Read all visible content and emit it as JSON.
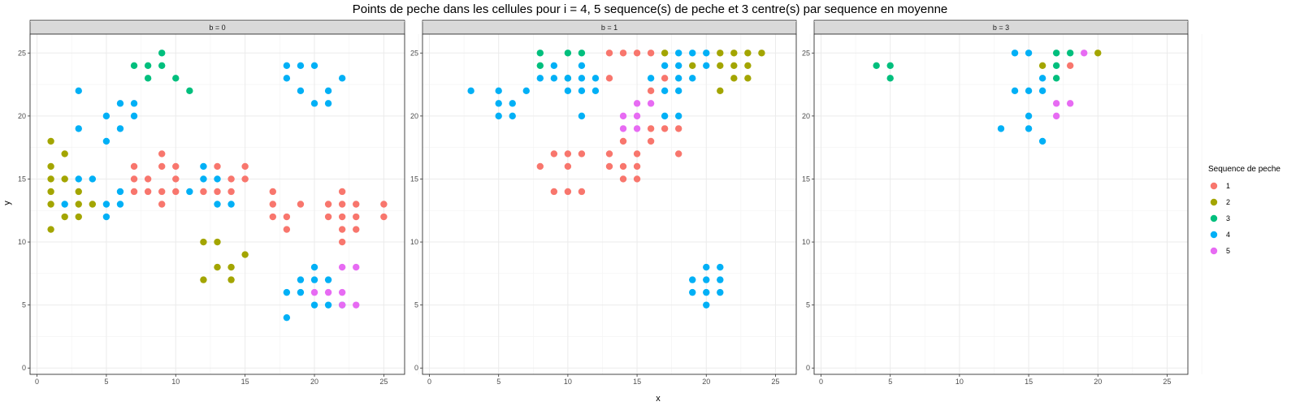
{
  "chart_data": {
    "type": "scatter",
    "title": "Points de peche dans les cellules pour i = 4, 5 sequence(s) de peche et 3 centre(s) par sequence en moyenne",
    "xlabel": "x",
    "ylabel": "y",
    "xlim": [
      -0.5,
      26.5
    ],
    "ylim": [
      -0.5,
      26.5
    ],
    "x_ticks": [
      0,
      5,
      10,
      15,
      20,
      25
    ],
    "y_ticks": [
      0,
      5,
      10,
      15,
      20,
      25
    ],
    "grid": true,
    "legend": {
      "title": "Sequence de peche",
      "placement": "right",
      "entries": [
        {
          "label": "1",
          "color": "#F8766D"
        },
        {
          "label": "2",
          "color": "#A3A500"
        },
        {
          "label": "3",
          "color": "#00BF7D"
        },
        {
          "label": "4",
          "color": "#00B0F6"
        },
        {
          "label": "5",
          "color": "#E76BF3"
        }
      ]
    },
    "facets": [
      {
        "label": "b = 0",
        "series": [
          {
            "name": "1",
            "points": [
              [
                7,
                16
              ],
              [
                7,
                15
              ],
              [
                7,
                14
              ],
              [
                8,
                15
              ],
              [
                8,
                14
              ],
              [
                9,
                17
              ],
              [
                9,
                16
              ],
              [
                9,
                14
              ],
              [
                9,
                13
              ],
              [
                10,
                16
              ],
              [
                10,
                15
              ],
              [
                10,
                14
              ],
              [
                12,
                14
              ],
              [
                13,
                16
              ],
              [
                13,
                14
              ],
              [
                14,
                15
              ],
              [
                14,
                14
              ],
              [
                15,
                16
              ],
              [
                15,
                15
              ],
              [
                17,
                14
              ],
              [
                17,
                13
              ],
              [
                17,
                12
              ],
              [
                18,
                12
              ],
              [
                18,
                11
              ],
              [
                19,
                13
              ],
              [
                21,
                13
              ],
              [
                21,
                12
              ],
              [
                22,
                14
              ],
              [
                22,
                13
              ],
              [
                22,
                12
              ],
              [
                22,
                11
              ],
              [
                22,
                10
              ],
              [
                23,
                13
              ],
              [
                23,
                12
              ],
              [
                23,
                11
              ],
              [
                25,
                13
              ],
              [
                25,
                12
              ]
            ]
          },
          {
            "name": "2",
            "points": [
              [
                1,
                18
              ],
              [
                1,
                16
              ],
              [
                1,
                15
              ],
              [
                1,
                14
              ],
              [
                1,
                13
              ],
              [
                1,
                11
              ],
              [
                2,
                17
              ],
              [
                2,
                15
              ],
              [
                2,
                12
              ],
              [
                3,
                14
              ],
              [
                3,
                13
              ],
              [
                3,
                12
              ],
              [
                4,
                13
              ],
              [
                12,
                10
              ],
              [
                12,
                7
              ],
              [
                13,
                10
              ],
              [
                13,
                8
              ],
              [
                14,
                8
              ],
              [
                14,
                7
              ],
              [
                15,
                9
              ]
            ]
          },
          {
            "name": "3",
            "points": [
              [
                7,
                24
              ],
              [
                8,
                24
              ],
              [
                8,
                23
              ],
              [
                9,
                25
              ],
              [
                9,
                24
              ],
              [
                10,
                23
              ],
              [
                11,
                22
              ]
            ]
          },
          {
            "name": "4",
            "points": [
              [
                2,
                13
              ],
              [
                3,
                22
              ],
              [
                3,
                19
              ],
              [
                3,
                15
              ],
              [
                4,
                15
              ],
              [
                5,
                20
              ],
              [
                5,
                18
              ],
              [
                5,
                13
              ],
              [
                5,
                12
              ],
              [
                6,
                21
              ],
              [
                6,
                19
              ],
              [
                6,
                14
              ],
              [
                6,
                13
              ],
              [
                7,
                21
              ],
              [
                7,
                20
              ],
              [
                11,
                14
              ],
              [
                12,
                16
              ],
              [
                12,
                15
              ],
              [
                13,
                15
              ],
              [
                13,
                13
              ],
              [
                14,
                13
              ],
              [
                18,
                24
              ],
              [
                18,
                23
              ],
              [
                18,
                6
              ],
              [
                18,
                4
              ],
              [
                19,
                24
              ],
              [
                19,
                22
              ],
              [
                19,
                7
              ],
              [
                19,
                6
              ],
              [
                20,
                24
              ],
              [
                20,
                21
              ],
              [
                20,
                8
              ],
              [
                20,
                7
              ],
              [
                20,
                5
              ],
              [
                21,
                22
              ],
              [
                21,
                21
              ],
              [
                21,
                7
              ],
              [
                21,
                5
              ],
              [
                22,
                23
              ],
              [
                22,
                5
              ]
            ]
          },
          {
            "name": "5",
            "points": [
              [
                20,
                6
              ],
              [
                21,
                6
              ],
              [
                22,
                8
              ],
              [
                22,
                6
              ],
              [
                22,
                5
              ],
              [
                23,
                8
              ],
              [
                23,
                5
              ]
            ]
          }
        ]
      },
      {
        "label": "b = 1",
        "series": [
          {
            "name": "1",
            "points": [
              [
                8,
                16
              ],
              [
                9,
                17
              ],
              [
                9,
                14
              ],
              [
                10,
                17
              ],
              [
                10,
                16
              ],
              [
                10,
                14
              ],
              [
                11,
                17
              ],
              [
                11,
                14
              ],
              [
                13,
                25
              ],
              [
                13,
                23
              ],
              [
                13,
                17
              ],
              [
                13,
                16
              ],
              [
                14,
                25
              ],
              [
                14,
                18
              ],
              [
                14,
                16
              ],
              [
                14,
                15
              ],
              [
                15,
                25
              ],
              [
                15,
                17
              ],
              [
                15,
                16
              ],
              [
                15,
                15
              ],
              [
                16,
                25
              ],
              [
                16,
                22
              ],
              [
                16,
                19
              ],
              [
                16,
                18
              ],
              [
                17,
                23
              ],
              [
                17,
                19
              ],
              [
                18,
                19
              ],
              [
                18,
                17
              ]
            ]
          },
          {
            "name": "2",
            "points": [
              [
                17,
                25
              ],
              [
                19,
                24
              ],
              [
                21,
                25
              ],
              [
                21,
                24
              ],
              [
                21,
                22
              ],
              [
                22,
                25
              ],
              [
                22,
                24
              ],
              [
                22,
                23
              ],
              [
                23,
                25
              ],
              [
                23,
                24
              ],
              [
                23,
                23
              ],
              [
                24,
                25
              ]
            ]
          },
          {
            "name": "3",
            "points": [
              [
                8,
                25
              ],
              [
                8,
                24
              ],
              [
                10,
                25
              ],
              [
                10,
                23
              ],
              [
                11,
                25
              ]
            ]
          },
          {
            "name": "4",
            "points": [
              [
                3,
                22
              ],
              [
                5,
                22
              ],
              [
                5,
                21
              ],
              [
                5,
                20
              ],
              [
                6,
                21
              ],
              [
                6,
                20
              ],
              [
                7,
                22
              ],
              [
                8,
                23
              ],
              [
                9,
                24
              ],
              [
                9,
                23
              ],
              [
                10,
                23
              ],
              [
                10,
                22
              ],
              [
                11,
                24
              ],
              [
                11,
                23
              ],
              [
                11,
                22
              ],
              [
                11,
                20
              ],
              [
                12,
                23
              ],
              [
                12,
                22
              ],
              [
                16,
                23
              ],
              [
                17,
                24
              ],
              [
                17,
                22
              ],
              [
                18,
                25
              ],
              [
                18,
                24
              ],
              [
                18,
                23
              ],
              [
                18,
                22
              ],
              [
                18,
                20
              ],
              [
                19,
                25
              ],
              [
                19,
                23
              ],
              [
                19,
                7
              ],
              [
                19,
                6
              ],
              [
                20,
                25
              ],
              [
                20,
                24
              ],
              [
                20,
                8
              ],
              [
                20,
                7
              ],
              [
                20,
                6
              ],
              [
                20,
                5
              ],
              [
                21,
                8
              ],
              [
                21,
                7
              ],
              [
                21,
                6
              ],
              [
                17,
                20
              ]
            ]
          },
          {
            "name": "5",
            "points": [
              [
                14,
                20
              ],
              [
                14,
                19
              ],
              [
                15,
                21
              ],
              [
                15,
                20
              ],
              [
                15,
                19
              ],
              [
                16,
                21
              ]
            ]
          }
        ]
      },
      {
        "label": "b = 3",
        "series": [
          {
            "name": "1",
            "points": [
              [
                18,
                24
              ]
            ]
          },
          {
            "name": "2",
            "points": [
              [
                16,
                24
              ],
              [
                20,
                25
              ]
            ]
          },
          {
            "name": "3",
            "points": [
              [
                4,
                24
              ],
              [
                5,
                24
              ],
              [
                5,
                23
              ],
              [
                17,
                25
              ],
              [
                17,
                24
              ],
              [
                17,
                23
              ],
              [
                18,
                25
              ]
            ]
          },
          {
            "name": "4",
            "points": [
              [
                13,
                19
              ],
              [
                14,
                25
              ],
              [
                14,
                22
              ],
              [
                15,
                25
              ],
              [
                15,
                22
              ],
              [
                15,
                20
              ],
              [
                15,
                19
              ],
              [
                16,
                23
              ],
              [
                16,
                22
              ],
              [
                16,
                18
              ]
            ]
          },
          {
            "name": "5",
            "points": [
              [
                17,
                21
              ],
              [
                17,
                20
              ],
              [
                18,
                21
              ],
              [
                19,
                25
              ]
            ]
          }
        ]
      }
    ]
  }
}
